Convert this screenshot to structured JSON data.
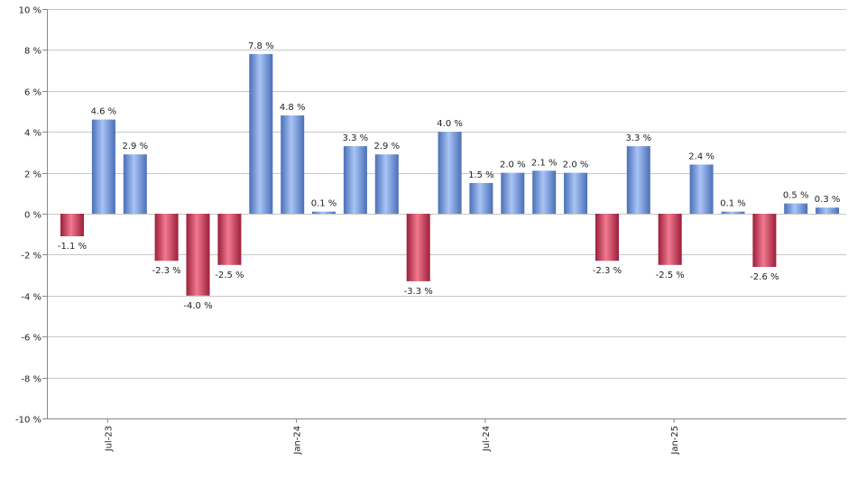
{
  "chart_data": {
    "type": "bar",
    "title": "",
    "xlabel": "",
    "ylabel": "",
    "ylim": [
      -10,
      10
    ],
    "y_ticks": [
      10,
      8,
      6,
      4,
      2,
      0,
      -2,
      -4,
      -6,
      -8,
      -10
    ],
    "y_tick_labels": [
      "10 %",
      "8 %",
      "6 %",
      "4 %",
      "2 %",
      "0 %",
      "-2 %",
      "-4 %",
      "-6 %",
      "-8 %",
      "-10 %"
    ],
    "x_tick_labels": [
      {
        "label": "Jul-23",
        "after_bar_index": 1
      },
      {
        "label": "Jan-24",
        "after_bar_index": 7
      },
      {
        "label": "Jul-24",
        "after_bar_index": 13
      },
      {
        "label": "Jan-25",
        "after_bar_index": 19
      }
    ],
    "grid": true,
    "values": [
      -1.1,
      4.6,
      2.9,
      -2.3,
      -4.0,
      -2.5,
      7.8,
      4.8,
      0.1,
      3.3,
      2.9,
      -3.3,
      4.0,
      1.5,
      2.0,
      2.1,
      2.0,
      -2.3,
      3.3,
      -2.5,
      2.4,
      0.1,
      -2.6,
      0.5,
      0.3
    ],
    "value_labels": [
      "-1.1 %",
      "4.6 %",
      "2.9 %",
      "-2.3 %",
      "-4.0 %",
      "-2.5 %",
      "7.8 %",
      "4.8 %",
      "0.1 %",
      "3.3 %",
      "2.9 %",
      "-3.3 %",
      "4.0 %",
      "1.5 %",
      "2.0 %",
      "2.1 %",
      "2.0 %",
      "-2.3 %",
      "3.3 %",
      "-2.5 %",
      "2.4 %",
      "0.1 %",
      "-2.6 %",
      "0.5 %",
      "0.3 %"
    ],
    "colors": {
      "positive_light": "#a9c4f5",
      "positive_dark": "#4a6fb8",
      "negative_light": "#f07a90",
      "negative_dark": "#9c1e3a",
      "grid": "#c8c8c8",
      "axis": "#888888"
    }
  }
}
